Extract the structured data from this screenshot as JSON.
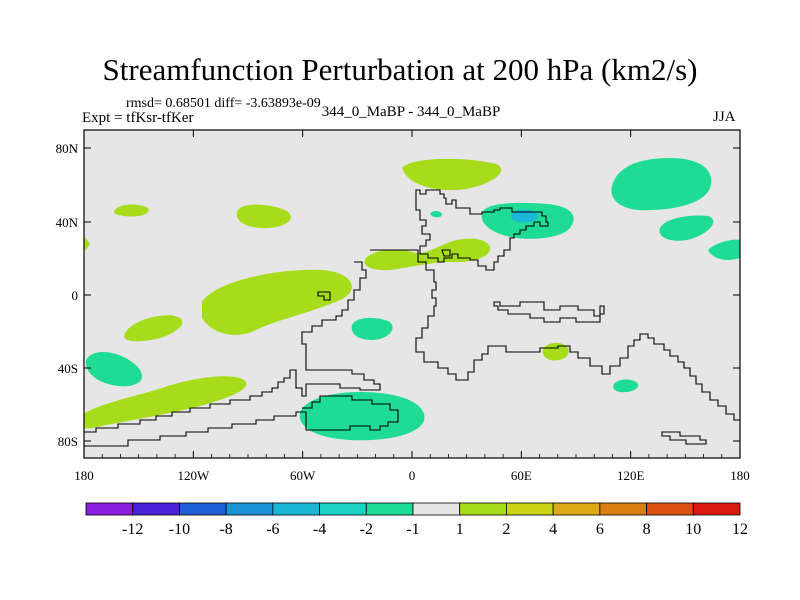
{
  "title": "Streamfunction Perturbation at 200 hPa (km2/s)",
  "stats_text": "rmsd= 0.68501 diff= -3.63893e-09",
  "expt_label": "Expt = tfKsr-tfKer",
  "experiments_label": "344_0_MaBP - 344_0_MaBP",
  "season_label": "JJA",
  "map": {
    "y_axis_labels": [
      "80N",
      "40N",
      "0",
      "40S",
      "80S"
    ],
    "x_axis_labels": [
      "180",
      "120W",
      "60W",
      "0",
      "60E",
      "120E",
      "180"
    ],
    "background_color": "#e6e6e6",
    "outline_color": "#000000"
  },
  "colorbar": {
    "labels": [
      "-12",
      "-10",
      "-8",
      "-6",
      "-4",
      "-2",
      "-1",
      "1",
      "2",
      "4",
      "6",
      "8",
      "10",
      "12"
    ],
    "colors": [
      "#8a1fe0",
      "#4a22d8",
      "#1f5fd6",
      "#1a92d6",
      "#1ab8d8",
      "#1ad1c4",
      "#1fdc95",
      "#e6e6e6",
      "#a6dc1a",
      "#cbd414",
      "#dcaa12",
      "#dc7d12",
      "#dc4f12",
      "#dc1a12"
    ]
  },
  "fields": {
    "positive_color": "#a6dc1a",
    "negative_color": "#1fdc95",
    "deep_negative_color": "#1ab8d8"
  }
}
